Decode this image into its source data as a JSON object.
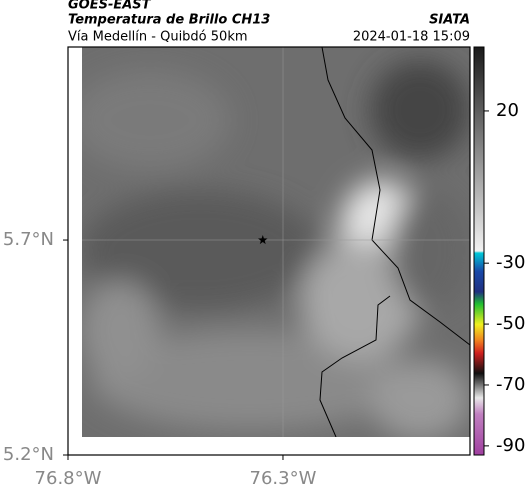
{
  "header": {
    "source": "GOES-EAST",
    "title": "Temperatura de Brillo CH13",
    "brand": "SIATA",
    "subtitle": "Vía Medellín - Quibdó 50km",
    "timestamp": "2024-01-18 15:09"
  },
  "map": {
    "xlim": [
      -76.8,
      -75.865
    ],
    "ylim": [
      5.2,
      6.149
    ],
    "xticks": [
      {
        "value": -76.8,
        "label": "76.8°W"
      },
      {
        "value": -76.3,
        "label": "76.3°W"
      }
    ],
    "yticks": [
      {
        "value": 5.7,
        "label": "5.7°N"
      },
      {
        "value": 5.2,
        "label": "5.2°N"
      }
    ],
    "marker": {
      "lon": -76.347,
      "lat": 5.7
    }
  },
  "colorbar": {
    "range": [
      41,
      -93
    ],
    "ticks": [
      20,
      -30,
      -50,
      -70,
      -90
    ]
  }
}
